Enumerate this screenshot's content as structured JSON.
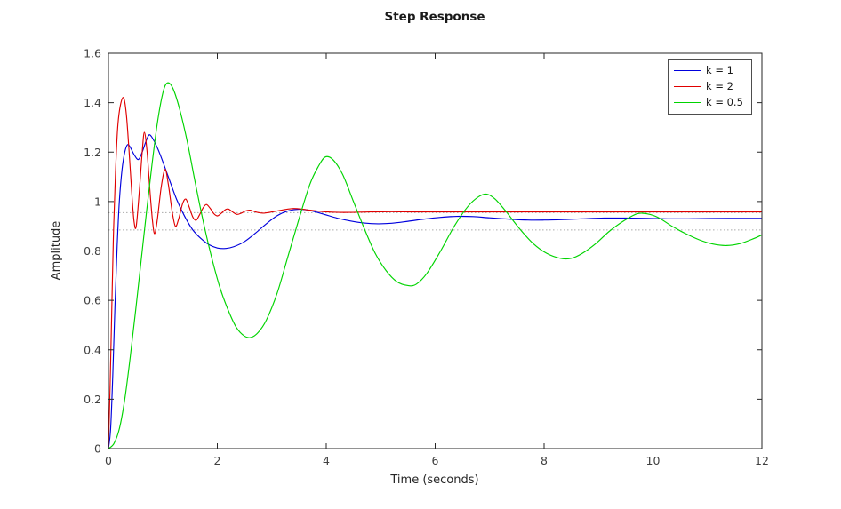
{
  "chart_data": {
    "type": "line",
    "title": "Step Response",
    "xlabel": "Time (seconds)",
    "ylabel": "Amplitude",
    "xlim": [
      0,
      12
    ],
    "ylim": [
      0,
      1.6
    ],
    "grid": false,
    "legend_position": "top-right",
    "xticks": {
      "values": [
        0,
        2,
        4,
        6,
        8,
        10,
        12
      ],
      "labels": [
        "0",
        "2",
        "4",
        "6",
        "8",
        "10",
        "12"
      ]
    },
    "yticks": {
      "values": [
        0,
        0.2,
        0.4,
        0.6,
        0.8,
        1,
        1.2,
        1.4,
        1.6
      ],
      "labels": [
        "0",
        "0.2",
        "0.4",
        "0.6",
        "0.8",
        "1",
        "1.2",
        "1.4",
        "1.6"
      ]
    },
    "reference_lines": {
      "color": "#aaaaaa",
      "style": "dotted",
      "y_values": [
        0.955,
        0.885
      ]
    },
    "axis_color": "#262626",
    "series": [
      {
        "name": "k = 1",
        "color": "#0000dd",
        "steady_state": 0.932,
        "points": [
          [
            0,
            0
          ],
          [
            0.04,
            0.08
          ],
          [
            0.08,
            0.3
          ],
          [
            0.12,
            0.58
          ],
          [
            0.16,
            0.82
          ],
          [
            0.2,
            1.0
          ],
          [
            0.25,
            1.13
          ],
          [
            0.3,
            1.2
          ],
          [
            0.35,
            1.23
          ],
          [
            0.4,
            1.22
          ],
          [
            0.47,
            1.19
          ],
          [
            0.55,
            1.17
          ],
          [
            0.62,
            1.2
          ],
          [
            0.7,
            1.25
          ],
          [
            0.76,
            1.27
          ],
          [
            0.85,
            1.24
          ],
          [
            0.95,
            1.19
          ],
          [
            1.1,
            1.1
          ],
          [
            1.25,
            1.01
          ],
          [
            1.4,
            0.94
          ],
          [
            1.55,
            0.885
          ],
          [
            1.7,
            0.85
          ],
          [
            1.85,
            0.825
          ],
          [
            2.0,
            0.812
          ],
          [
            2.15,
            0.81
          ],
          [
            2.3,
            0.817
          ],
          [
            2.5,
            0.838
          ],
          [
            2.7,
            0.872
          ],
          [
            2.9,
            0.91
          ],
          [
            3.1,
            0.943
          ],
          [
            3.3,
            0.962
          ],
          [
            3.5,
            0.969
          ],
          [
            3.7,
            0.964
          ],
          [
            3.95,
            0.949
          ],
          [
            4.2,
            0.933
          ],
          [
            4.45,
            0.921
          ],
          [
            4.7,
            0.913
          ],
          [
            4.95,
            0.91
          ],
          [
            5.2,
            0.912
          ],
          [
            5.5,
            0.92
          ],
          [
            5.8,
            0.929
          ],
          [
            6.1,
            0.936
          ],
          [
            6.4,
            0.94
          ],
          [
            6.7,
            0.939
          ],
          [
            7.0,
            0.934
          ],
          [
            7.35,
            0.929
          ],
          [
            7.7,
            0.925
          ],
          [
            8.0,
            0.925
          ],
          [
            8.35,
            0.927
          ],
          [
            8.7,
            0.93
          ],
          [
            9.1,
            0.933
          ],
          [
            9.5,
            0.933
          ],
          [
            9.9,
            0.932
          ],
          [
            10.4,
            0.93
          ],
          [
            10.9,
            0.931
          ],
          [
            11.4,
            0.932
          ],
          [
            12,
            0.932
          ]
        ]
      },
      {
        "name": "k = 2",
        "color": "#e00000",
        "steady_state": 0.958,
        "points": [
          [
            0,
            0
          ],
          [
            0.03,
            0.25
          ],
          [
            0.06,
            0.55
          ],
          [
            0.09,
            0.85
          ],
          [
            0.13,
            1.12
          ],
          [
            0.17,
            1.3
          ],
          [
            0.22,
            1.39
          ],
          [
            0.28,
            1.42
          ],
          [
            0.33,
            1.35
          ],
          [
            0.38,
            1.2
          ],
          [
            0.43,
            1.03
          ],
          [
            0.47,
            0.92
          ],
          [
            0.51,
            0.9
          ],
          [
            0.57,
            1.05
          ],
          [
            0.62,
            1.2
          ],
          [
            0.66,
            1.28
          ],
          [
            0.71,
            1.2
          ],
          [
            0.76,
            1.05
          ],
          [
            0.81,
            0.92
          ],
          [
            0.85,
            0.87
          ],
          [
            0.9,
            0.93
          ],
          [
            0.97,
            1.06
          ],
          [
            1.04,
            1.13
          ],
          [
            1.1,
            1.07
          ],
          [
            1.17,
            0.96
          ],
          [
            1.23,
            0.9
          ],
          [
            1.29,
            0.93
          ],
          [
            1.36,
            0.99
          ],
          [
            1.42,
            1.01
          ],
          [
            1.48,
            0.98
          ],
          [
            1.55,
            0.937
          ],
          [
            1.61,
            0.924
          ],
          [
            1.67,
            0.945
          ],
          [
            1.74,
            0.975
          ],
          [
            1.8,
            0.988
          ],
          [
            1.87,
            0.972
          ],
          [
            1.94,
            0.95
          ],
          [
            2.0,
            0.942
          ],
          [
            2.07,
            0.952
          ],
          [
            2.14,
            0.966
          ],
          [
            2.2,
            0.97
          ],
          [
            2.28,
            0.958
          ],
          [
            2.36,
            0.948
          ],
          [
            2.44,
            0.953
          ],
          [
            2.52,
            0.962
          ],
          [
            2.6,
            0.965
          ],
          [
            2.72,
            0.957
          ],
          [
            2.84,
            0.953
          ],
          [
            3.0,
            0.958
          ],
          [
            3.2,
            0.966
          ],
          [
            3.4,
            0.972
          ],
          [
            3.6,
            0.968
          ],
          [
            3.85,
            0.961
          ],
          [
            4.1,
            0.957
          ],
          [
            4.4,
            0.956
          ],
          [
            4.8,
            0.958
          ],
          [
            5.2,
            0.959
          ],
          [
            5.6,
            0.958
          ],
          [
            6.0,
            0.958
          ],
          [
            6.5,
            0.958
          ],
          [
            7.0,
            0.958
          ],
          [
            8.0,
            0.958
          ],
          [
            9.0,
            0.958
          ],
          [
            10.0,
            0.958
          ],
          [
            11.0,
            0.958
          ],
          [
            12.0,
            0.958
          ]
        ]
      },
      {
        "name": "k = 0.5",
        "color": "#00d400",
        "steady_state": 0.885,
        "points": [
          [
            0,
            0
          ],
          [
            0.1,
            0.02
          ],
          [
            0.2,
            0.08
          ],
          [
            0.3,
            0.2
          ],
          [
            0.4,
            0.37
          ],
          [
            0.5,
            0.56
          ],
          [
            0.6,
            0.76
          ],
          [
            0.7,
            0.96
          ],
          [
            0.8,
            1.15
          ],
          [
            0.9,
            1.32
          ],
          [
            1.0,
            1.44
          ],
          [
            1.08,
            1.48
          ],
          [
            1.18,
            1.46
          ],
          [
            1.3,
            1.38
          ],
          [
            1.45,
            1.24
          ],
          [
            1.6,
            1.07
          ],
          [
            1.75,
            0.91
          ],
          [
            1.9,
            0.77
          ],
          [
            2.05,
            0.65
          ],
          [
            2.2,
            0.56
          ],
          [
            2.35,
            0.49
          ],
          [
            2.5,
            0.455
          ],
          [
            2.62,
            0.45
          ],
          [
            2.75,
            0.47
          ],
          [
            2.9,
            0.52
          ],
          [
            3.1,
            0.63
          ],
          [
            3.3,
            0.78
          ],
          [
            3.5,
            0.93
          ],
          [
            3.7,
            1.07
          ],
          [
            3.85,
            1.14
          ],
          [
            3.98,
            1.18
          ],
          [
            4.12,
            1.17
          ],
          [
            4.3,
            1.11
          ],
          [
            4.5,
            1.0
          ],
          [
            4.7,
            0.89
          ],
          [
            4.9,
            0.79
          ],
          [
            5.1,
            0.72
          ],
          [
            5.3,
            0.675
          ],
          [
            5.5,
            0.66
          ],
          [
            5.65,
            0.665
          ],
          [
            5.85,
            0.71
          ],
          [
            6.1,
            0.8
          ],
          [
            6.35,
            0.9
          ],
          [
            6.6,
            0.98
          ],
          [
            6.8,
            1.02
          ],
          [
            6.95,
            1.03
          ],
          [
            7.1,
            1.01
          ],
          [
            7.3,
            0.96
          ],
          [
            7.55,
            0.89
          ],
          [
            7.8,
            0.83
          ],
          [
            8.05,
            0.79
          ],
          [
            8.3,
            0.77
          ],
          [
            8.5,
            0.77
          ],
          [
            8.7,
            0.79
          ],
          [
            8.95,
            0.83
          ],
          [
            9.2,
            0.88
          ],
          [
            9.45,
            0.92
          ],
          [
            9.7,
            0.95
          ],
          [
            9.9,
            0.95
          ],
          [
            10.1,
            0.935
          ],
          [
            10.35,
            0.9
          ],
          [
            10.6,
            0.87
          ],
          [
            10.85,
            0.845
          ],
          [
            11.1,
            0.828
          ],
          [
            11.35,
            0.822
          ],
          [
            11.6,
            0.83
          ],
          [
            11.85,
            0.85
          ],
          [
            12,
            0.865
          ]
        ]
      }
    ]
  }
}
